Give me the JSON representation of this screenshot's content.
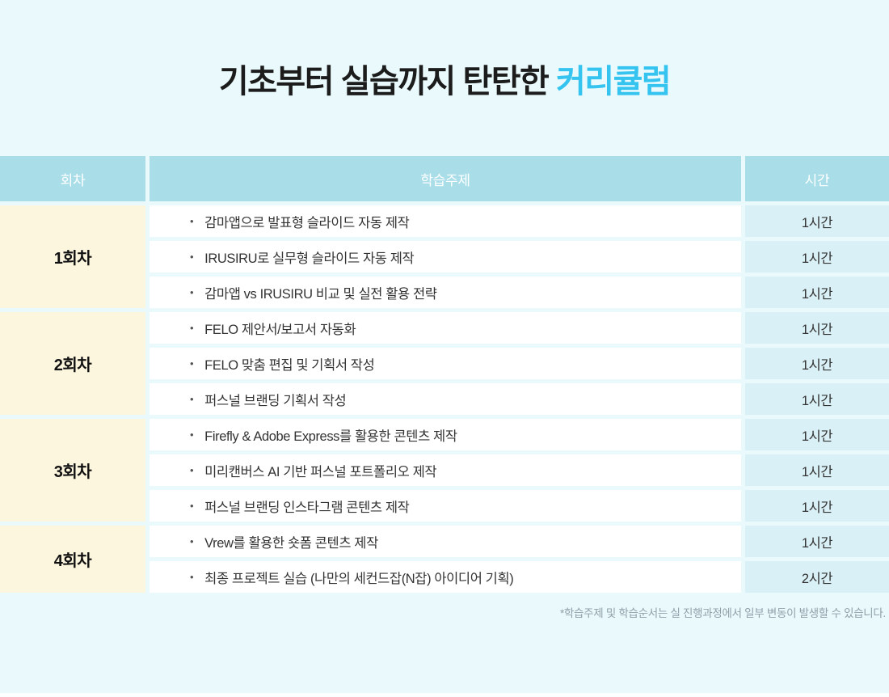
{
  "page": {
    "title_prefix": "기초부터 실습까지 탄탄한 ",
    "title_highlight": "커리큘럼",
    "footnote": "*학습주제 및 학습순서는 실 진행과정에서 일부 변동이 발생할 수 있습니다.",
    "colors": {
      "background": "#E9F9FC",
      "title_accent": "#35C4F0",
      "header_cell": "#A9DEE9",
      "session_cell": "#FDF6DF",
      "topic_cell": "#FFFFFF",
      "time_cell": "#D9F0F6",
      "body_text": "#333333",
      "footnote_text": "#8FA0A8"
    }
  },
  "table": {
    "bullet": "•",
    "headers": {
      "session": "회차",
      "topic": "학습주제",
      "time": "시간"
    },
    "groups": [
      {
        "session": "1회차",
        "rows": [
          {
            "topic": "감마앱으로 발표형 슬라이드 자동 제작",
            "time": "1시간"
          },
          {
            "topic": "IRUSIRU로 실무형 슬라이드 자동 제작",
            "time": "1시간"
          },
          {
            "topic": "감마앱 vs IRUSIRU 비교 및 실전 활용 전략",
            "time": "1시간"
          }
        ]
      },
      {
        "session": "2회차",
        "rows": [
          {
            "topic": "FELO 제안서/보고서 자동화",
            "time": "1시간"
          },
          {
            "topic": "FELO 맞춤 편집 및 기획서 작성",
            "time": "1시간"
          },
          {
            "topic": "퍼스널 브랜딩 기획서 작성",
            "time": "1시간"
          }
        ]
      },
      {
        "session": "3회차",
        "rows": [
          {
            "topic": "Firefly & Adobe Express를 활용한 콘텐츠 제작",
            "time": "1시간"
          },
          {
            "topic": "미리캔버스 AI 기반 퍼스널 포트폴리오 제작",
            "time": "1시간"
          },
          {
            "topic": "퍼스널 브랜딩 인스타그램 콘텐츠 제작",
            "time": "1시간"
          }
        ]
      },
      {
        "session": "4회차",
        "rows": [
          {
            "topic": "Vrew를 활용한 숏폼 콘텐츠 제작",
            "time": "1시간"
          },
          {
            "topic": "최종 프로젝트 실습 (나만의 세컨드잡(N잡) 아이디어 기획)",
            "time": "2시간"
          }
        ]
      }
    ]
  }
}
